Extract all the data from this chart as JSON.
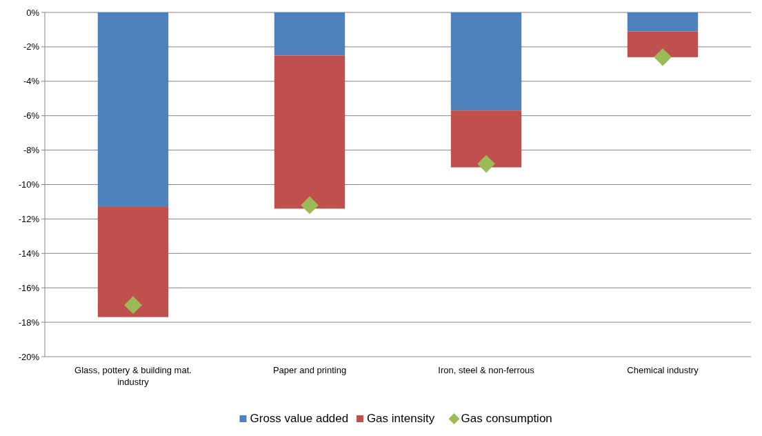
{
  "chart_data": {
    "type": "bar",
    "stacked": true,
    "categories": [
      "Glass, pottery & building mat. industry",
      "Paper and printing",
      "Iron, steel & non-ferrous",
      "Chemical industry"
    ],
    "series": [
      {
        "name": "Gross value added",
        "color": "#4f81bd",
        "values": [
          -11.3,
          -2.5,
          -5.7,
          -1.1
        ]
      },
      {
        "name": "Gas intensity",
        "color": "#c0504d",
        "values": [
          -6.4,
          -8.9,
          -3.3,
          -1.5
        ]
      },
      {
        "name": "Gas consumption",
        "type": "scatter",
        "color": "#9bbb59",
        "x": [
          "Glass, pottery & building mat. industry",
          "Paper and printing",
          "Iron, steel & non-ferrous",
          "Chemical industry"
        ],
        "values": [
          -17.0,
          -11.2,
          -8.8,
          -2.6
        ]
      }
    ],
    "ylim": [
      -20,
      0
    ],
    "yticks": [
      {
        "value": 0,
        "label": "0%"
      },
      {
        "value": -2,
        "label": "-2%"
      },
      {
        "value": -4,
        "label": "-4%"
      },
      {
        "value": -6,
        "label": "-6%"
      },
      {
        "value": -8,
        "label": "-8%"
      },
      {
        "value": -10,
        "label": "-10%"
      },
      {
        "value": -12,
        "label": "-12%"
      },
      {
        "value": -14,
        "label": "-14%"
      },
      {
        "value": -16,
        "label": "-16%"
      },
      {
        "value": -18,
        "label": "-18%"
      },
      {
        "value": -20,
        "label": "-20%"
      }
    ],
    "grid": "y",
    "legend": "bottom",
    "marker": "diamond"
  }
}
